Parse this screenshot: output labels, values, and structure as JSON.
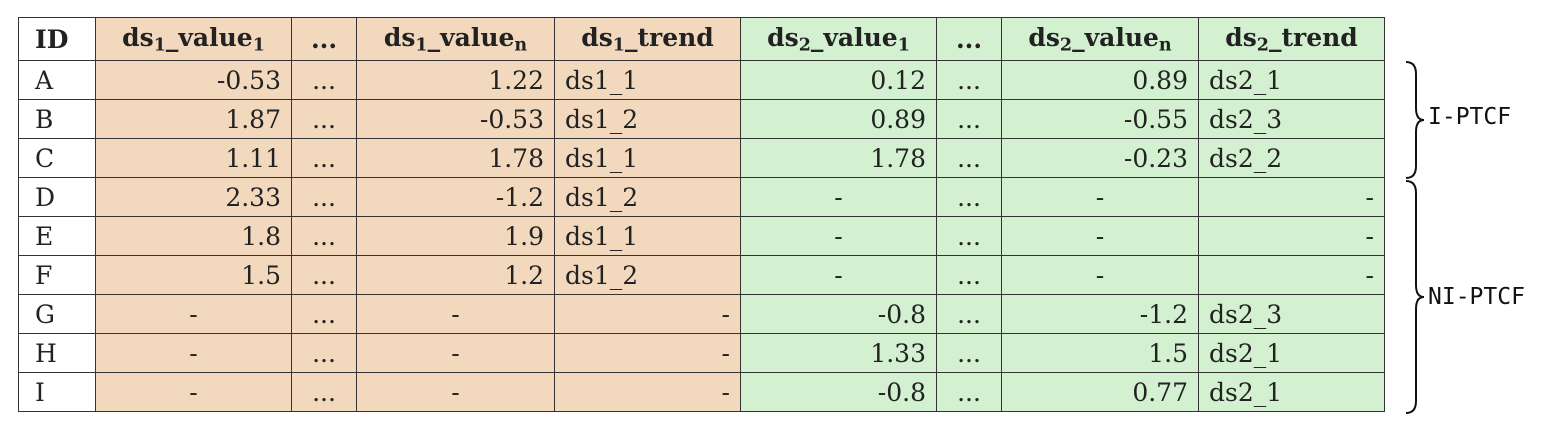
{
  "table": {
    "headers": {
      "id": "ID",
      "ds1_value1": {
        "a": "ds",
        "b": "1",
        "c": "_value",
        "d": "1"
      },
      "ellipsis1": "...",
      "ds1_valuen": {
        "a": "ds",
        "b": "1",
        "c": "_value",
        "d": "n"
      },
      "ds1_trend": {
        "a": "ds",
        "b": "1",
        "c": "_trend"
      },
      "ds2_value1": {
        "a": "ds",
        "b": "2",
        "c": "_value",
        "d": "1"
      },
      "ellipsis2": "...",
      "ds2_valuen": {
        "a": "ds",
        "b": "2",
        "c": "_value",
        "d": "n"
      },
      "ds2_trend": {
        "a": "ds",
        "b": "2",
        "c": "_trend"
      }
    },
    "rows": [
      {
        "id": "A",
        "ds1_v1": "-0.53",
        "e1": "...",
        "ds1_vn": "1.22",
        "ds1_tr": "ds1_1",
        "ds2_v1": "0.12",
        "e2": "...",
        "ds2_vn": "0.89",
        "ds2_tr": "ds2_1"
      },
      {
        "id": "B",
        "ds1_v1": "1.87",
        "e1": "...",
        "ds1_vn": "-0.53",
        "ds1_tr": "ds1_2",
        "ds2_v1": "0.89",
        "e2": "...",
        "ds2_vn": "-0.55",
        "ds2_tr": "ds2_3"
      },
      {
        "id": "C",
        "ds1_v1": "1.11",
        "e1": "...",
        "ds1_vn": "1.78",
        "ds1_tr": "ds1_1",
        "ds2_v1": "1.78",
        "e2": "...",
        "ds2_vn": "-0.23",
        "ds2_tr": "ds2_2"
      },
      {
        "id": "D",
        "ds1_v1": "2.33",
        "e1": "...",
        "ds1_vn": "-1.2",
        "ds1_tr": "ds1_2",
        "ds2_v1": "-",
        "e2": "...",
        "ds2_vn": "-",
        "ds2_tr": "-"
      },
      {
        "id": "E",
        "ds1_v1": "1.8",
        "e1": "...",
        "ds1_vn": "1.9",
        "ds1_tr": "ds1_1",
        "ds2_v1": "-",
        "e2": "...",
        "ds2_vn": "-",
        "ds2_tr": "-"
      },
      {
        "id": "F",
        "ds1_v1": "1.5",
        "e1": "...",
        "ds1_vn": "1.2",
        "ds1_tr": "ds1_2",
        "ds2_v1": "-",
        "e2": "...",
        "ds2_vn": "-",
        "ds2_tr": "-"
      },
      {
        "id": "G",
        "ds1_v1": "-",
        "e1": "...",
        "ds1_vn": "-",
        "ds1_tr": "-",
        "ds2_v1": "-0.8",
        "e2": "...",
        "ds2_vn": "-1.2",
        "ds2_tr": "ds2_3"
      },
      {
        "id": "H",
        "ds1_v1": "-",
        "e1": "...",
        "ds1_vn": "-",
        "ds1_tr": "-",
        "ds2_v1": "1.33",
        "e2": "...",
        "ds2_vn": "1.5",
        "ds2_tr": "ds2_1"
      },
      {
        "id": "I",
        "ds1_v1": "-",
        "e1": "...",
        "ds1_vn": "-",
        "ds1_tr": "-",
        "ds2_v1": "-0.8",
        "e2": "...",
        "ds2_vn": "0.77",
        "ds2_tr": "ds2_1"
      }
    ]
  },
  "groups": {
    "i_ptcf": "I-PTCF",
    "ni_ptcf": "NI-PTCF"
  },
  "colors": {
    "ds1_background": "#f2d9bd",
    "ds2_background": "#d3f0d0"
  }
}
